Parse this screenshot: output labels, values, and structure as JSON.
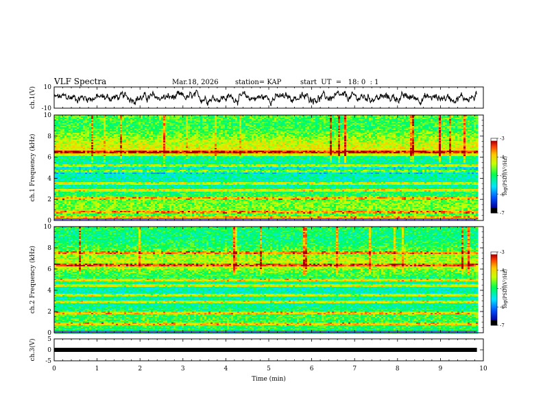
{
  "header": {
    "title": "VLF Spectra",
    "date": "Mar.18, 2026",
    "station": "station= KAP",
    "start": "start  UT  =   18: 0  : 1"
  },
  "colors": {
    "background": "#ffffff",
    "axis": "#000000",
    "trace": "#000000",
    "colormap": [
      "#000000",
      "#0000ff",
      "#00ffff",
      "#00ff00",
      "#ffff00",
      "#ff0000",
      "#ffffff"
    ]
  },
  "chart_data": [
    {
      "id": "ch1_waveform",
      "type": "line",
      "ylabel": "ch.1(V)",
      "xlim": [
        0,
        10
      ],
      "ylim": [
        -10,
        10
      ],
      "yticks": [
        "10",
        "-10"
      ],
      "x_end": 9.85,
      "description": "dense noisy voltage trace spanning roughly -6 to 6 V"
    },
    {
      "id": "ch1_spectrogram",
      "type": "heatmap",
      "ylabel": "ch.1  Frequency  (kHz)",
      "xlim": [
        0,
        10
      ],
      "ylim": [
        0,
        10
      ],
      "yticks": [
        "0",
        "2",
        "4",
        "6",
        "8",
        "10"
      ],
      "colorbar": {
        "label": "log(PSD)(V²/Hz)",
        "range": [
          -7,
          -3
        ],
        "ticks": [
          "-3",
          "-4",
          "-5",
          "-6",
          "-7"
        ]
      },
      "bands_khz": [
        0.3,
        0.9,
        2.1,
        2.95,
        3.55,
        4.7,
        5.3,
        6.6
      ]
    },
    {
      "id": "ch2_spectrogram",
      "type": "heatmap",
      "ylabel": "ch.2  Frequency  (kHz)",
      "xlim": [
        0,
        10
      ],
      "ylim": [
        0,
        10
      ],
      "yticks": [
        "0",
        "2",
        "4",
        "6",
        "8",
        "10"
      ],
      "colorbar": {
        "label": "log(PSD)(V²/Hz)",
        "range": [
          -7,
          -3
        ],
        "ticks": [
          "-3",
          "-4",
          "-5",
          "-6",
          "-7"
        ]
      },
      "bands_khz": [
        0.9,
        1.9,
        3.0,
        3.6,
        4.5,
        5.0,
        6.4,
        7.6
      ]
    },
    {
      "id": "ch3_waveform",
      "type": "line",
      "ylabel": "ch.3(V)",
      "xlim": [
        0,
        10
      ],
      "ylim": [
        -5,
        5
      ],
      "yticks": [
        "5",
        "0",
        "-5"
      ],
      "constant_value": 0,
      "x_end": 9.85
    }
  ],
  "xaxis": {
    "label": "Time  (min)",
    "ticks": [
      "0",
      "1",
      "2",
      "3",
      "4",
      "5",
      "6",
      "7",
      "8",
      "9",
      "10"
    ]
  }
}
